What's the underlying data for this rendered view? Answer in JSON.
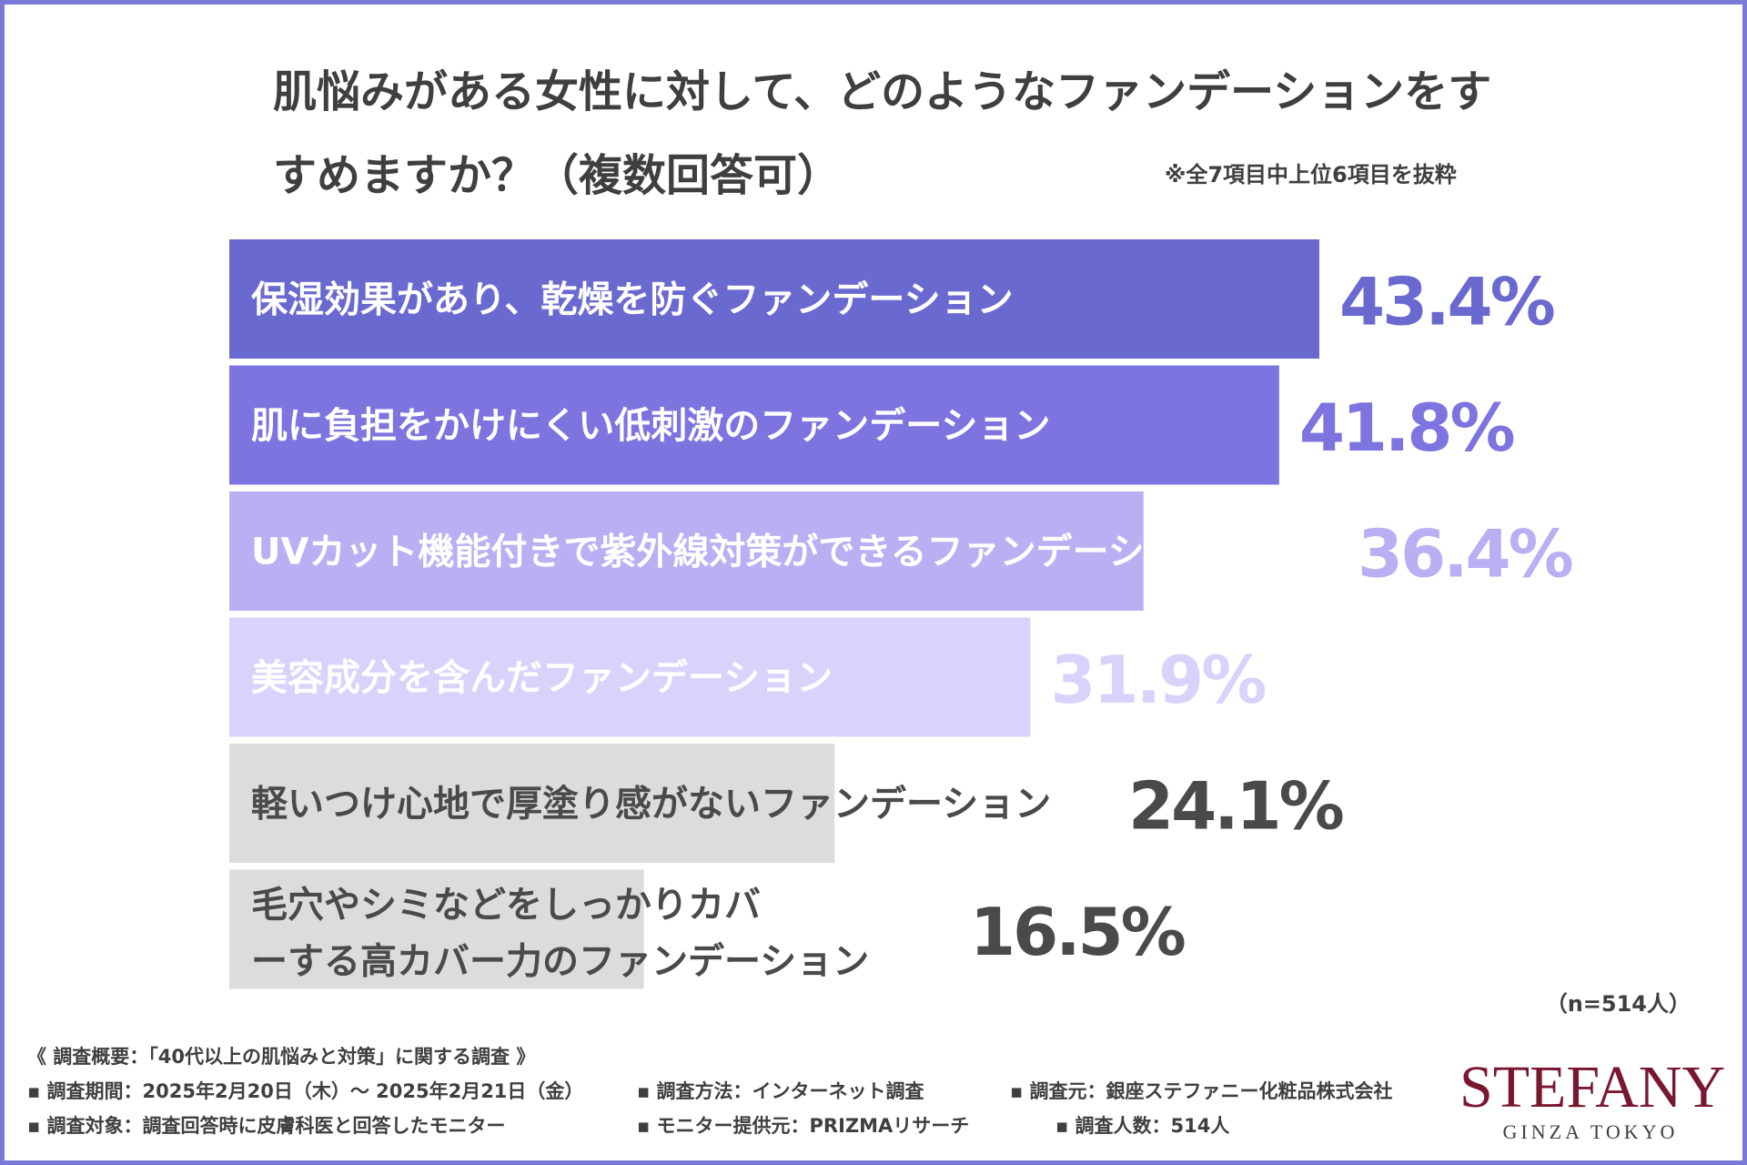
{
  "chart_data": {
    "type": "bar",
    "orientation": "horizontal",
    "title": "肌悩みがある女性に対して、どのようなファンデーションをすすめますか？（複数回答可）",
    "note": "※全7項目中上位6項目を抜粋",
    "sample": "（n=514人）",
    "categories": [
      "保湿効果があり、乾燥を防ぐファンデーション",
      "肌に負担をかけにくい低刺激のファンデーション",
      "UVカット機能付きで紫外線対策ができるファンデーション",
      "美容成分を含んだファンデーション",
      "軽いつけ心地で厚塗り感がないファンデーション",
      "毛穴やシミなどをしっかりカバーする高カバー力のファンデーション"
    ],
    "values": [
      43.4,
      41.8,
      36.4,
      31.9,
      24.1,
      16.5
    ],
    "value_labels": [
      "43.4%",
      "41.8%",
      "36.4%",
      "31.9%",
      "24.1%",
      "16.5%"
    ],
    "xlim": [
      0,
      43.4
    ],
    "colors": [
      "#6a69cf",
      "#7d74e0",
      "#b9b0f4",
      "#d9d3fb",
      "#dcdcdc",
      "#dcdcdc"
    ],
    "label_colors": [
      "#ffffff",
      "#ffffff",
      "#ffffff",
      "#ffffff",
      "#4a4a4a",
      "#4a4a4a"
    ],
    "value_colors": [
      "#6a69cf",
      "#7d74e0",
      "#b9b0f4",
      "#d9d3fb",
      "#4a4a4a",
      "#4a4a4a"
    ],
    "grid": false,
    "legend": "none"
  },
  "survey": {
    "heading": "《 調査概要：「40代以上の肌悩みと対策」に関する調査 》",
    "period": "▪ 調査期間：2025年2月20日（木）～  2025年2月21日（金）",
    "method": "▪ 調査方法：インターネット調査",
    "organizer": "▪ 調査元：銀座ステファニー化粧品株式会社",
    "target": "▪ 調査対象：調査回答時に皮膚科医と回答したモニター",
    "provider": "▪ モニター提供元：PRIZMAリサーチ",
    "count": "▪ 調査人数：514人"
  },
  "brand": {
    "name": "STEFANY",
    "sub": "GINZA TOKYO",
    "color": "#7a1730"
  }
}
